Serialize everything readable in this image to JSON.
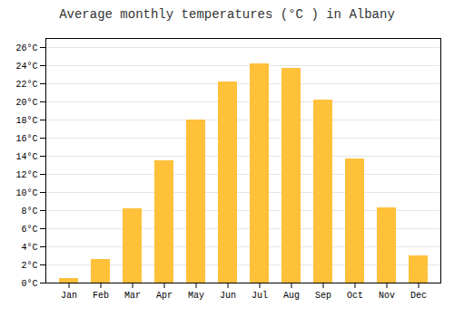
{
  "chart_data": {
    "type": "bar",
    "title": "Average monthly temperatures (°C ) in Albany",
    "categories": [
      "Jan",
      "Feb",
      "Mar",
      "Apr",
      "May",
      "Jun",
      "Jul",
      "Aug",
      "Sep",
      "Oct",
      "Nov",
      "Dec"
    ],
    "values": [
      0.5,
      2.6,
      8.2,
      13.5,
      18.0,
      22.2,
      24.2,
      23.7,
      20.2,
      13.7,
      8.3,
      3.0
    ],
    "color": "#FFC03A",
    "ylim": [
      0,
      27
    ],
    "yticks": [
      {
        "value": 0,
        "label": "0°C"
      },
      {
        "value": 2,
        "label": "2°C"
      },
      {
        "value": 4,
        "label": "4°C"
      },
      {
        "value": 6,
        "label": "6°C"
      },
      {
        "value": 8,
        "label": "8°C"
      },
      {
        "value": 10,
        "label": "10°C"
      },
      {
        "value": 12,
        "label": "12°C"
      },
      {
        "value": 14,
        "label": "14°C"
      },
      {
        "value": 16,
        "label": "16°C"
      },
      {
        "value": 18,
        "label": "18°C"
      },
      {
        "value": 20,
        "label": "20°C"
      },
      {
        "value": 22,
        "label": "22°C"
      },
      {
        "value": 24,
        "label": "24°C"
      },
      {
        "value": 26,
        "label": "26°C"
      }
    ],
    "grid": true
  }
}
